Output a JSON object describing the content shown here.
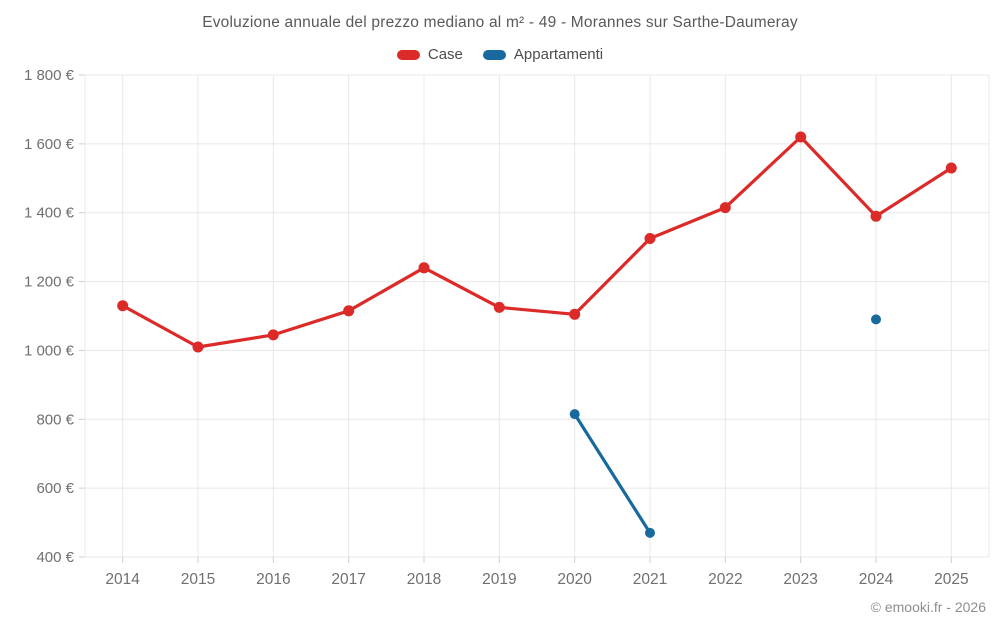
{
  "chart_data": {
    "type": "line",
    "title": "Evoluzione annuale del prezzo mediano al m² - 49 - Morannes sur Sarthe-Daumeray",
    "categories": [
      "2014",
      "2015",
      "2016",
      "2017",
      "2018",
      "2019",
      "2020",
      "2021",
      "2022",
      "2023",
      "2024",
      "2025"
    ],
    "series": [
      {
        "name": "Case",
        "color": "#dc2a28",
        "values": [
          1130,
          1010,
          1045,
          1115,
          1240,
          1125,
          1105,
          1325,
          1415,
          1620,
          1390,
          1530
        ]
      },
      {
        "name": "Appartamenti",
        "color": "#17699e",
        "values": [
          null,
          null,
          null,
          null,
          null,
          null,
          815,
          470,
          null,
          null,
          1090,
          null
        ]
      }
    ],
    "xlabel": "",
    "ylabel": "",
    "ylim": [
      400,
      1800
    ],
    "ytick_step": 200,
    "ytick_labels": [
      "400 €",
      "600 €",
      "800 €",
      "1 000 €",
      "1 200 €",
      "1 400 €",
      "1 600 €",
      "1 800 €"
    ],
    "grid": true,
    "legend_position": "top",
    "footer": "© emooki.fr - 2026"
  },
  "colors": {
    "background": "#ffffff",
    "grid": "#e8e8e8",
    "tick": "#cfcfcf",
    "title_text": "#595959",
    "axis_text": "#707070",
    "legend_text": "#4d4d4d",
    "footer_text": "#8e8e8e"
  }
}
